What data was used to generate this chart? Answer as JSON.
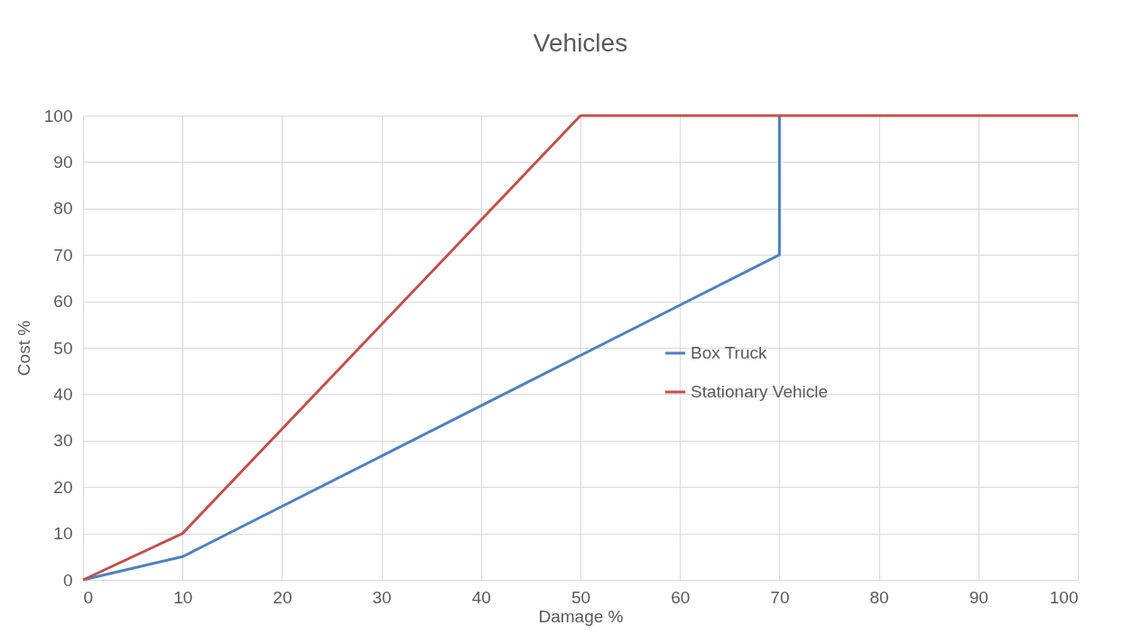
{
  "chart_data": {
    "type": "line",
    "title": "Vehicles",
    "xlabel": "Damage %",
    "ylabel": "Cost %",
    "xlim": [
      0,
      100
    ],
    "xticks": [
      0,
      10,
      20,
      30,
      40,
      50,
      60,
      70,
      80,
      90,
      100
    ],
    "ylim": [
      0,
      100
    ],
    "yticks": [
      0,
      10,
      20,
      30,
      40,
      50,
      60,
      70,
      80,
      90,
      100
    ],
    "grid": true,
    "legend": "right",
    "line_style": "solid",
    "series": [
      {
        "name": "Box Truck",
        "color": "#4f81bd",
        "x": [
          0,
          10,
          70,
          70
        ],
        "values": [
          0,
          5,
          70,
          100
        ]
      },
      {
        "name": "Stationary Vehicle",
        "color": "#c0504d",
        "x": [
          0,
          10,
          50,
          100
        ],
        "values": [
          0,
          10,
          100,
          100
        ]
      }
    ]
  }
}
